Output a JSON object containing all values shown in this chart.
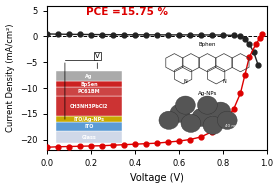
{
  "title": "PCE =15.75 %",
  "xlabel": "Voltage (V)",
  "ylabel": "Current Density (mA/cm²)",
  "xlim": [
    0.0,
    1.0
  ],
  "ylim": [
    -22,
    6
  ],
  "yticks": [
    -20,
    -15,
    -10,
    -5,
    0,
    5
  ],
  "xticks": [
    0.0,
    0.2,
    0.4,
    0.6,
    0.8,
    1.0
  ],
  "black_curve_color": "#222222",
  "red_curve_color": "#dd0000",
  "title_color": "#dd0000",
  "dashed_line_y": 0,
  "background_color": "#ffffff",
  "black_x": [
    0.0,
    0.05,
    0.1,
    0.15,
    0.2,
    0.25,
    0.3,
    0.35,
    0.4,
    0.45,
    0.5,
    0.55,
    0.6,
    0.65,
    0.7,
    0.75,
    0.8,
    0.85,
    0.88,
    0.9,
    0.92,
    0.94,
    0.96
  ],
  "black_y": [
    0.5,
    0.45,
    0.42,
    0.4,
    0.38,
    0.36,
    0.35,
    0.34,
    0.33,
    0.32,
    0.32,
    0.31,
    0.31,
    0.31,
    0.3,
    0.3,
    0.29,
    0.2,
    0.0,
    -0.5,
    -1.5,
    -3.0,
    -5.5
  ],
  "red_x": [
    0.0,
    0.05,
    0.1,
    0.15,
    0.2,
    0.25,
    0.3,
    0.35,
    0.4,
    0.45,
    0.5,
    0.55,
    0.6,
    0.65,
    0.7,
    0.75,
    0.8,
    0.85,
    0.88,
    0.9,
    0.92,
    0.95,
    0.97,
    0.98
  ],
  "red_y": [
    -21.5,
    -21.4,
    -21.35,
    -21.3,
    -21.25,
    -21.2,
    -21.1,
    -21.0,
    -20.9,
    -20.8,
    -20.7,
    -20.5,
    -20.3,
    -20.0,
    -19.5,
    -18.5,
    -17.0,
    -14.0,
    -11.0,
    -7.5,
    -4.0,
    -1.5,
    -0.2,
    0.5
  ],
  "layer_colors": [
    "#888888",
    "#cc3333",
    "#cc3333",
    "#8b0000",
    "#c8b400",
    "#4a90d9",
    "#cccccc"
  ],
  "layer_labels": [
    "Ag",
    "BpSen",
    "PC61BM",
    "CH3NH3PbCl2",
    "ITO/Ag-NPs",
    "ITO",
    "Glass"
  ]
}
